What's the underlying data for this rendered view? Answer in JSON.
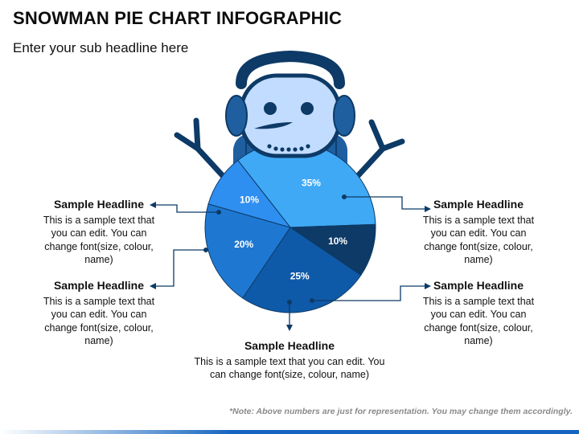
{
  "header": {
    "title": "SNOWMAN PIE CHART INFOGRAPHIC",
    "subtitle": "Enter your sub headline here"
  },
  "callouts": {
    "left_top": {
      "headline": "Sample Headline",
      "body": "This is a sample text that you can edit. You can change font(size, colour, name)"
    },
    "left_bottom": {
      "headline": "Sample Headline",
      "body": "This is a sample text that you can edit. You can change font(size, colour, name)"
    },
    "right_top": {
      "headline": "Sample Headline",
      "body": "This is a sample text that you can edit. You can change font(size, colour, name)"
    },
    "right_bottom": {
      "headline": "Sample Headline",
      "body": "This is a sample text that you can edit. You can change font(size, colour, name)"
    },
    "bottom": {
      "headline": "Sample Headline",
      "body": "This is a sample text that you can edit. You can change font(size, colour, name)"
    }
  },
  "note": "*Note: Above numbers are just for representation. You may change them accordingly.",
  "chart_data": {
    "type": "pie",
    "title": "",
    "slices": [
      {
        "label": "35%",
        "value": 35,
        "color": "#3fa9f5"
      },
      {
        "label": "10%",
        "value": 10,
        "color": "#0d3a66"
      },
      {
        "label": "25%",
        "value": 25,
        "color": "#0f5aa8"
      },
      {
        "label": "20%",
        "value": 20,
        "color": "#1e78d2"
      },
      {
        "label": "10%",
        "value": 10,
        "color": "#2f8ff0"
      }
    ]
  },
  "colors": {
    "accent": "#1565c0",
    "head": "#c2dcff",
    "dark": "#0d3a66",
    "scarf": "#1f5fa0"
  }
}
